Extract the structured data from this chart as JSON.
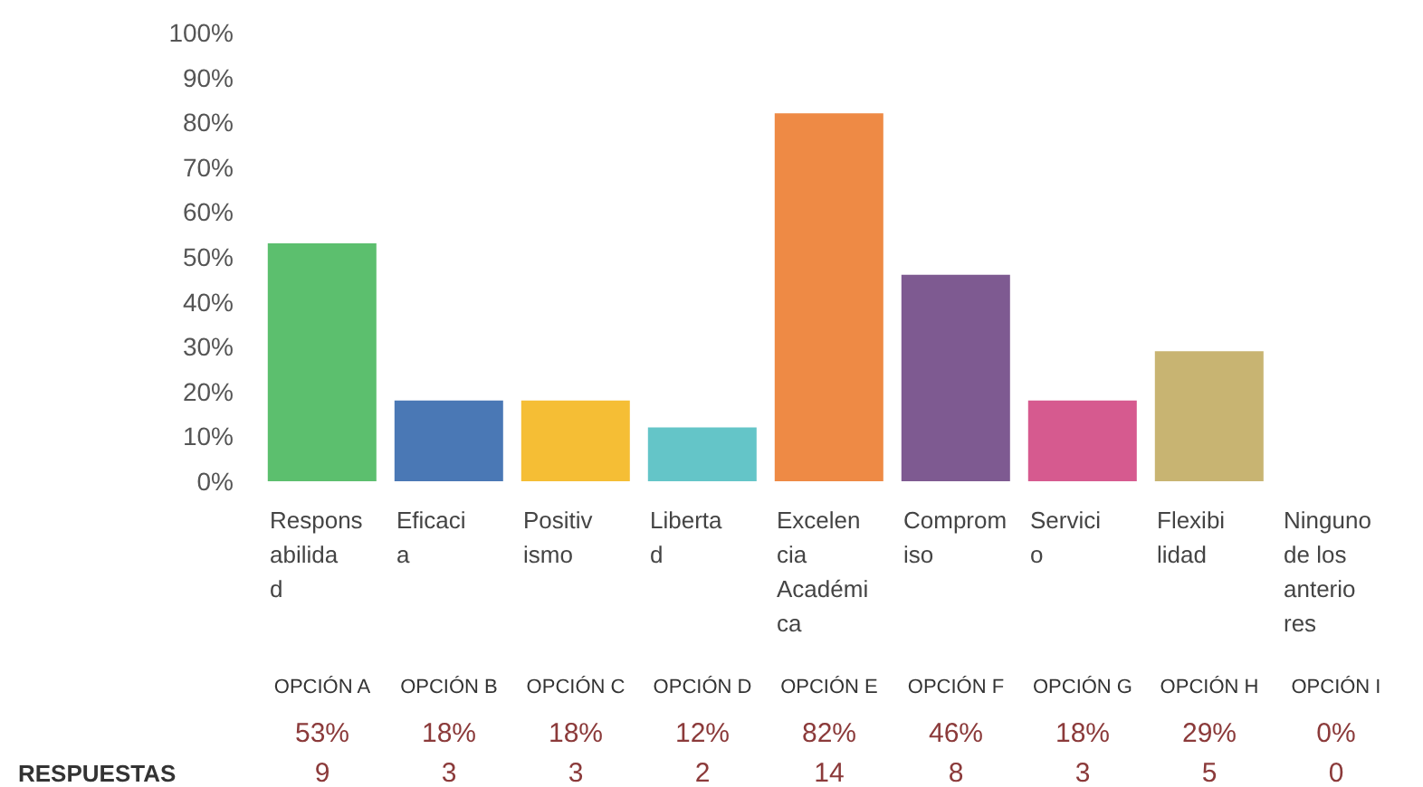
{
  "chart_data": {
    "type": "bar",
    "categories": [
      "Responsabilidad",
      "Eficacia",
      "Positivismo",
      "Libertad",
      "Excelencia Académica",
      "Compromiso",
      "Servicio",
      "Flexibilidad",
      "Ninguno de los anteriores"
    ],
    "values": [
      53,
      18,
      18,
      12,
      82,
      46,
      18,
      29,
      0
    ],
    "colors": [
      "#5cbf6e",
      "#4a78b5",
      "#f5be35",
      "#64c5c8",
      "#ee8a45",
      "#7e5a91",
      "#d65a8f",
      "#c8b472",
      "#bbbbbb"
    ],
    "value_labels": [
      "53%",
      "18%",
      "18%",
      "12%",
      "82%",
      "46%",
      "18%",
      "29%",
      "0%"
    ],
    "ylim": [
      0,
      100
    ],
    "yticks": [
      {
        "value": 0,
        "label": "0%"
      },
      {
        "value": 10,
        "label": "10%"
      },
      {
        "value": 20,
        "label": "20%"
      },
      {
        "value": 30,
        "label": "30%"
      },
      {
        "value": 40,
        "label": "40%"
      },
      {
        "value": 50,
        "label": "50%"
      },
      {
        "value": 60,
        "label": "60%"
      },
      {
        "value": 70,
        "label": "70%"
      },
      {
        "value": 80,
        "label": "80%"
      },
      {
        "value": 90,
        "label": "90%"
      },
      {
        "value": 100,
        "label": "100%"
      }
    ],
    "annotations": [
      "OPCIÓN A",
      "OPCIÓN B",
      "OPCIÓN C",
      "OPCIÓN D",
      "OPCIÓN E",
      "OPCIÓN F",
      "OPCIÓN G",
      "OPCIÓN H",
      "OPCIÓN I",
      "RESPUESTAS",
      "9",
      "3",
      "3",
      "2",
      "14",
      "8",
      "3",
      "5",
      "0"
    ]
  }
}
